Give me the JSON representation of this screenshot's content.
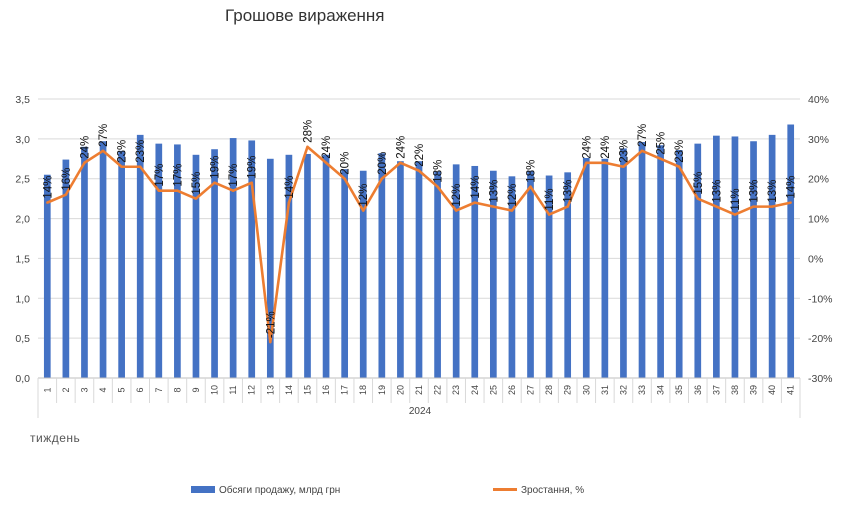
{
  "chart_data": {
    "type": "bar+line",
    "title": "Грошове вираження",
    "xlabel": "тиждень",
    "period_label": "2024",
    "categories": [
      "1",
      "2",
      "3",
      "4",
      "5",
      "6",
      "7",
      "8",
      "9",
      "10",
      "11",
      "12",
      "13",
      "14",
      "15",
      "16",
      "17",
      "18",
      "19",
      "20",
      "21",
      "22",
      "23",
      "24",
      "25",
      "26",
      "27",
      "28",
      "29",
      "30",
      "31",
      "32",
      "33",
      "34",
      "35",
      "36",
      "37",
      "38",
      "39",
      "40",
      "41"
    ],
    "series": [
      {
        "name": "Обсяги продажу, млрд грн",
        "type": "bar",
        "axis": "left",
        "color": "#4472C4",
        "values": [
          2.55,
          2.74,
          2.9,
          2.97,
          2.85,
          3.05,
          2.94,
          2.93,
          2.8,
          2.87,
          3.01,
          2.98,
          2.75,
          2.8,
          2.81,
          2.8,
          2.62,
          2.6,
          2.82,
          2.72,
          2.72,
          2.59,
          2.68,
          2.66,
          2.6,
          2.53,
          2.6,
          2.54,
          2.58,
          2.76,
          2.75,
          2.88,
          2.96,
          2.92,
          2.86,
          2.94,
          3.04,
          3.03,
          2.97,
          3.05,
          3.18
        ]
      },
      {
        "name": "Зростання, %",
        "type": "line",
        "axis": "right",
        "color": "#ED7D31",
        "values": [
          14,
          16,
          24,
          27,
          23,
          23,
          17,
          17,
          15,
          19,
          17,
          19,
          -21,
          14,
          28,
          24,
          20,
          12,
          20,
          24,
          22,
          18,
          12,
          14,
          13,
          12,
          18,
          11,
          13,
          24,
          24,
          23,
          27,
          25,
          23,
          15,
          13,
          11,
          13,
          13,
          14
        ],
        "data_labels": [
          "14%",
          "16%",
          "24%",
          "27%",
          "23%",
          "23%",
          "17%",
          "17%",
          "15%",
          "19%",
          "17%",
          "19%",
          "-21%",
          "14%",
          "28%",
          "24%",
          "20%",
          "12%",
          "20%",
          "24%",
          "22%",
          "18%",
          "12%",
          "14%",
          "13%",
          "12%",
          "18%",
          "11%",
          "13%",
          "24%",
          "24%",
          "23%",
          "27%",
          "25%",
          "23%",
          "15%",
          "13%",
          "11%",
          "13%",
          "13%",
          "14%"
        ]
      }
    ],
    "y_left": {
      "min": 0,
      "max": 3.5,
      "step": 0.5,
      "tick_labels": [
        "0,0",
        "0,5",
        "1,0",
        "1,5",
        "2,0",
        "2,5",
        "3,0",
        "3,5"
      ]
    },
    "y_right": {
      "min": -30,
      "max": 40,
      "step": 10,
      "tick_labels": [
        "-30%",
        "-20%",
        "-10%",
        "0%",
        "10%",
        "20%",
        "30%",
        "40%"
      ]
    },
    "grid": true,
    "legend_position": "bottom"
  }
}
